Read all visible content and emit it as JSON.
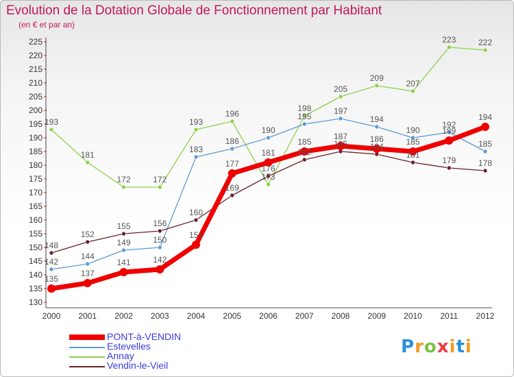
{
  "header": {
    "title": "Evolution de la Dotation Globale de Fonctionnement par Habitant",
    "subtitle": "(en € et par an)"
  },
  "logo": {
    "text": "Proxiti"
  },
  "colors": {
    "PONT-à-VENDIN": "#ee0000",
    "Estevelles": "#5b9bd5",
    "Annay": "#8ed04a",
    "Vendin-le-Vieil": "#6b1f2a",
    "axis_text": "#333333",
    "grid_tick": "#d02020",
    "value_label": "#555555"
  },
  "chart_data": {
    "type": "line",
    "title": "Evolution de la Dotation Globale de Fonctionnement par Habitant",
    "subtitle": "(en € et par an)",
    "xlabel": "",
    "ylabel": "",
    "x": [
      "2000",
      "2001",
      "2002",
      "2003",
      "2004",
      "2005",
      "2006",
      "2007",
      "2008",
      "2009",
      "2010",
      "2011",
      "2012"
    ],
    "ylim": [
      130,
      225
    ],
    "yticks": [
      130,
      135,
      140,
      145,
      150,
      155,
      160,
      165,
      170,
      175,
      180,
      185,
      190,
      195,
      200,
      205,
      210,
      215,
      220,
      225
    ],
    "legend_position": "bottom-left",
    "series": [
      {
        "name": "PONT-à-VENDIN",
        "values": [
          135,
          137,
          141,
          142,
          151,
          177,
          181,
          185,
          187,
          186,
          185,
          189,
          194
        ]
      },
      {
        "name": "Estevelles",
        "values": [
          142,
          144,
          149,
          150,
          183,
          186,
          190,
          195,
          197,
          194,
          190,
          192,
          185
        ]
      },
      {
        "name": "Annay",
        "values": [
          193,
          181,
          172,
          172,
          193,
          196,
          173,
          198,
          205,
          209,
          207,
          223,
          222
        ]
      },
      {
        "name": "Vendin-le-Vieil",
        "values": [
          148,
          152,
          155,
          156,
          160,
          169,
          176,
          182,
          185,
          184,
          181,
          179,
          178
        ]
      }
    ]
  }
}
